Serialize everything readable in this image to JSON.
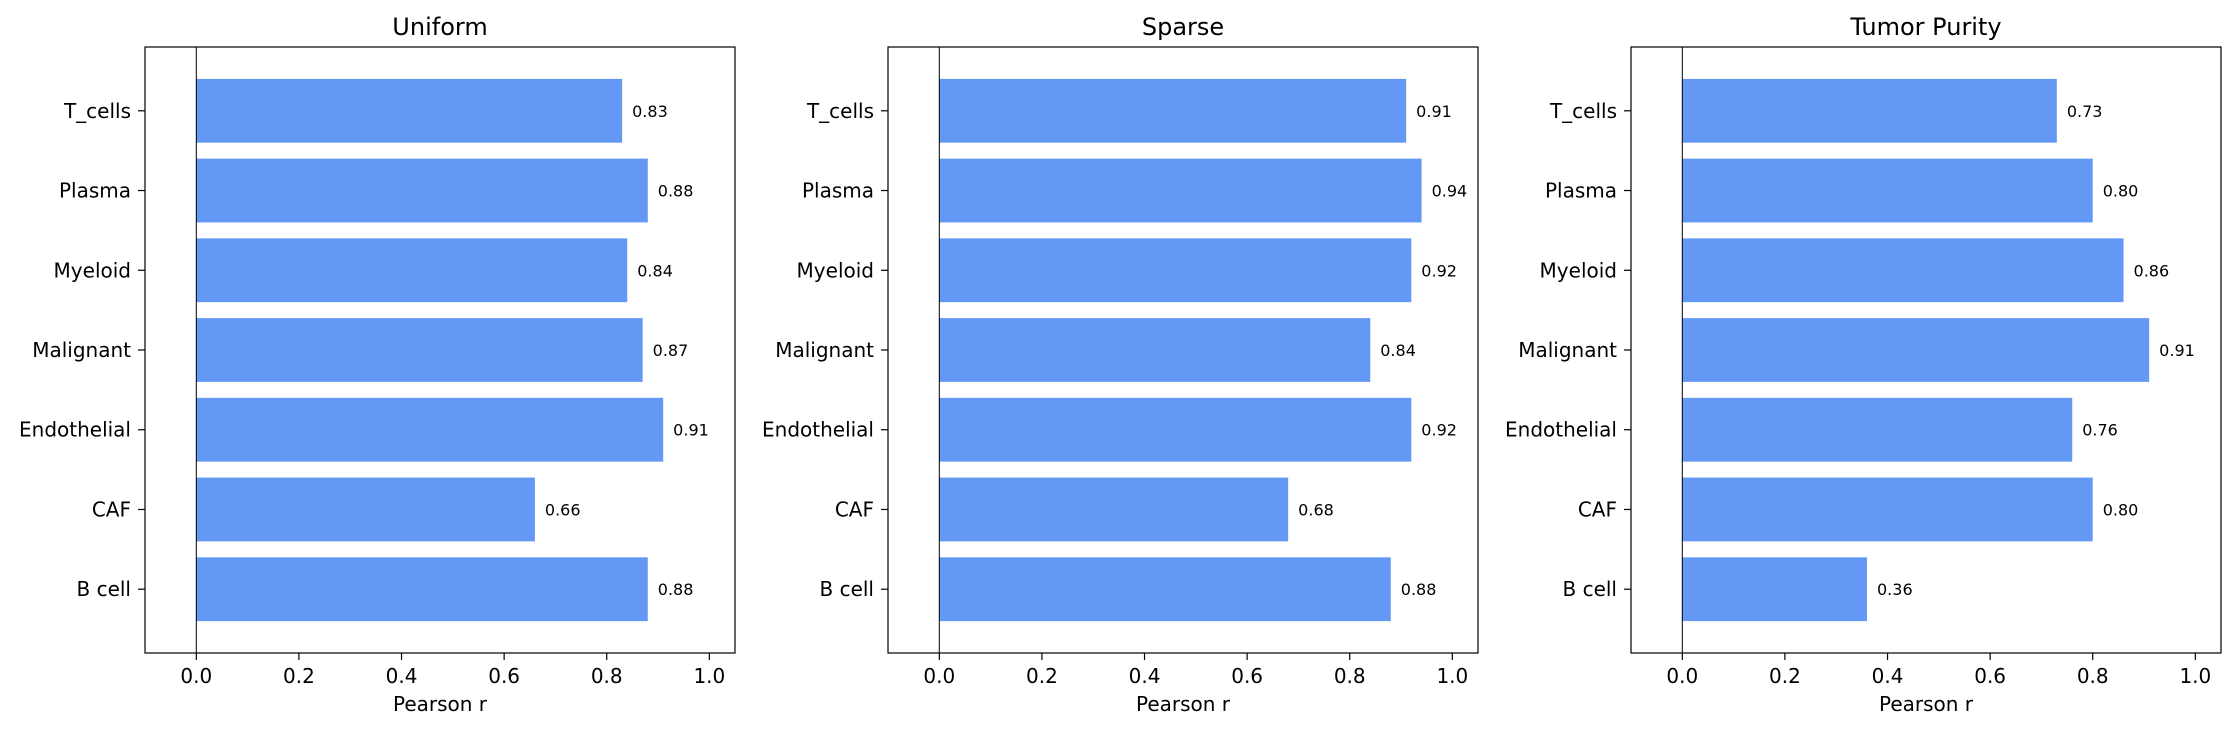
{
  "chart_data": [
    {
      "type": "bar",
      "orientation": "horizontal",
      "title": "Uniform",
      "xlabel": "Pearson r",
      "ylabel": "",
      "categories": [
        "T_cells",
        "Plasma",
        "Myeloid",
        "Malignant",
        "Endothelial",
        "CAF",
        "B cell"
      ],
      "values": [
        0.83,
        0.88,
        0.84,
        0.87,
        0.91,
        0.66,
        0.88
      ],
      "labels": [
        "0.83",
        "0.88",
        "0.84",
        "0.87",
        "0.91",
        "0.66",
        "0.88"
      ],
      "xlim": [
        -0.1,
        1.05
      ],
      "xticks": [
        "0.0",
        "0.2",
        "0.4",
        "0.6",
        "0.8",
        "1.0"
      ],
      "bar_color": "#6399f5",
      "grid": false,
      "vline_at": 0
    },
    {
      "type": "bar",
      "orientation": "horizontal",
      "title": "Sparse",
      "xlabel": "Pearson r",
      "ylabel": "",
      "categories": [
        "T_cells",
        "Plasma",
        "Myeloid",
        "Malignant",
        "Endothelial",
        "CAF",
        "B cell"
      ],
      "values": [
        0.91,
        0.94,
        0.92,
        0.84,
        0.92,
        0.68,
        0.88
      ],
      "labels": [
        "0.91",
        "0.94",
        "0.92",
        "0.84",
        "0.92",
        "0.68",
        "0.88"
      ],
      "xlim": [
        -0.1,
        1.05
      ],
      "xticks": [
        "0.0",
        "0.2",
        "0.4",
        "0.6",
        "0.8",
        "1.0"
      ],
      "bar_color": "#6399f5",
      "grid": false,
      "vline_at": 0
    },
    {
      "type": "bar",
      "orientation": "horizontal",
      "title": "Tumor Purity",
      "xlabel": "Pearson r",
      "ylabel": "",
      "categories": [
        "T_cells",
        "Plasma",
        "Myeloid",
        "Malignant",
        "Endothelial",
        "CAF",
        "B cell"
      ],
      "values": [
        0.73,
        0.8,
        0.86,
        0.91,
        0.76,
        0.8,
        0.36
      ],
      "labels": [
        "0.73",
        "0.80",
        "0.86",
        "0.91",
        "0.76",
        "0.80",
        "0.36"
      ],
      "xlim": [
        -0.1,
        1.05
      ],
      "xticks": [
        "0.0",
        "0.2",
        "0.4",
        "0.6",
        "0.8",
        "1.0"
      ],
      "bar_color": "#6399f5",
      "grid": false,
      "vline_at": 0
    }
  ]
}
